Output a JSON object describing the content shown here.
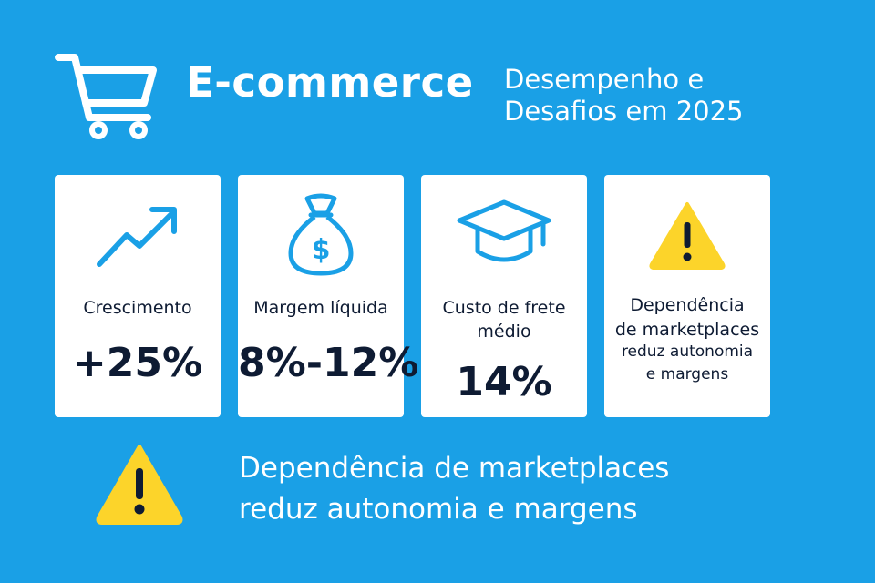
{
  "header": {
    "icon": "shopping-cart-icon",
    "title": "E-commerce",
    "subtitle_line1": "Desempenho e",
    "subtitle_line2": "Desafios em 2025"
  },
  "cards": [
    {
      "icon": "trending-up-icon",
      "label": "Crescimento",
      "value": "+25%"
    },
    {
      "icon": "money-bag-icon",
      "label": "Margem líquida",
      "value": "8%-12%"
    },
    {
      "icon": "graduation-cap-icon",
      "label_line1": "Custo de frete",
      "label_line2": "médio",
      "value": "14%"
    },
    {
      "icon": "warning-icon",
      "title_line1": "Dependência",
      "title_line2": "de marketplaces",
      "sub_line1": "reduz autonomia",
      "sub_line2": "e margens"
    }
  ],
  "footer": {
    "icon": "warning-icon",
    "line1": "Dependência de marketplaces",
    "line2": "reduz autonomia e margens"
  },
  "colors": {
    "background": "#1aa0e6",
    "icon_blue": "#1aa0e6",
    "text_dark": "#0e1b33",
    "warning_yellow": "#fcd42a"
  }
}
